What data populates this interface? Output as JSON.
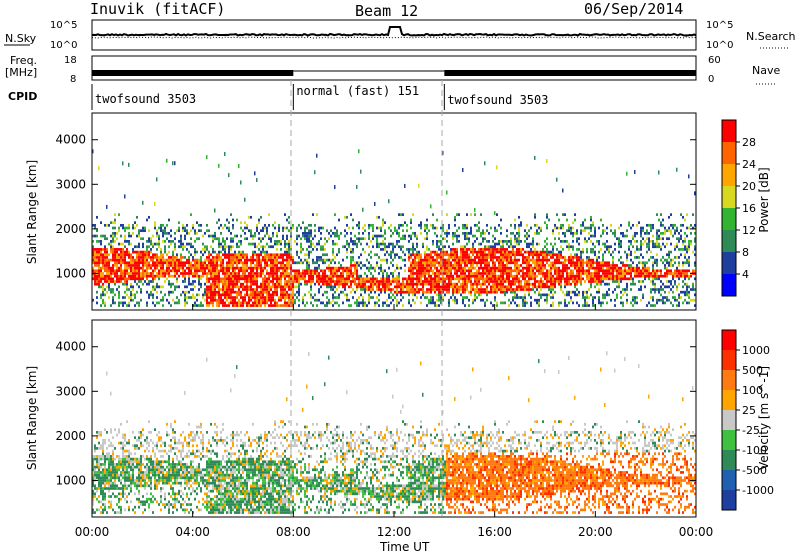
{
  "header": {
    "station": "Inuvik (fitACF)",
    "beam": "Beam 12",
    "date": "06/Sep/2014"
  },
  "top_panels": {
    "nsky_label": "N.Sky",
    "nsky_ticks": [
      "10^5",
      "10^0"
    ],
    "nsearch_label": "N.Search",
    "nsearch_ticks": [
      "10^5",
      "10^0"
    ],
    "freq_label_1": "Freq.",
    "freq_label_2": "[MHz]",
    "freq_ticks": [
      "18",
      "8"
    ],
    "nave_label": "Nave",
    "nave_ticks": [
      "60",
      "0"
    ],
    "cpid_label": "CPID",
    "cpid_segments": [
      {
        "label": "twofsound 3503",
        "start": "00:00",
        "end": "08:00"
      },
      {
        "label": "normal (fast) 151",
        "start": "08:00",
        "end": "14:00"
      },
      {
        "label": "twofsound 3503",
        "start": "14:00",
        "end": "00:00"
      }
    ]
  },
  "chart_data": [
    {
      "type": "heatmap",
      "name": "power",
      "xlabel": "",
      "ylabel": "Slant Range [km]",
      "x_range_hours": [
        0,
        24
      ],
      "ylim": [
        180,
        4600
      ],
      "y_ticks": [
        "4000",
        "3000",
        "2000",
        "1000"
      ],
      "colorbar_label": "Power [dB]",
      "colorbar_ticks": [
        "28",
        "24",
        "20",
        "16",
        "12",
        "8",
        "4"
      ],
      "colors": [
        "#0000ff",
        "#1f3f9f",
        "#2e8b57",
        "#32b432",
        "#d8d820",
        "#ffa500",
        "#ff6400",
        "#ff0000"
      ]
    },
    {
      "type": "heatmap",
      "name": "velocity",
      "xlabel": "Time UT",
      "ylabel": "Slant Range [km]",
      "x_ticks": [
        "00:00",
        "04:00",
        "08:00",
        "12:00",
        "16:00",
        "20:00",
        "00:00"
      ],
      "x_range_hours": [
        0,
        24
      ],
      "ylim": [
        180,
        4600
      ],
      "y_ticks": [
        "4000",
        "3000",
        "2000",
        "1000"
      ],
      "colorbar_label": "Velocity [m s^-1]",
      "colorbar_ticks": [
        "1000",
        "500",
        "100",
        "25",
        "-25",
        "-100",
        "-500",
        "-1000"
      ],
      "colors": [
        "#1f3fa0",
        "#2060b0",
        "#2e8b57",
        "#40c040",
        "#c8c8c8",
        "#ffa500",
        "#ff7a10",
        "#ff3000",
        "#ff0000"
      ]
    }
  ]
}
